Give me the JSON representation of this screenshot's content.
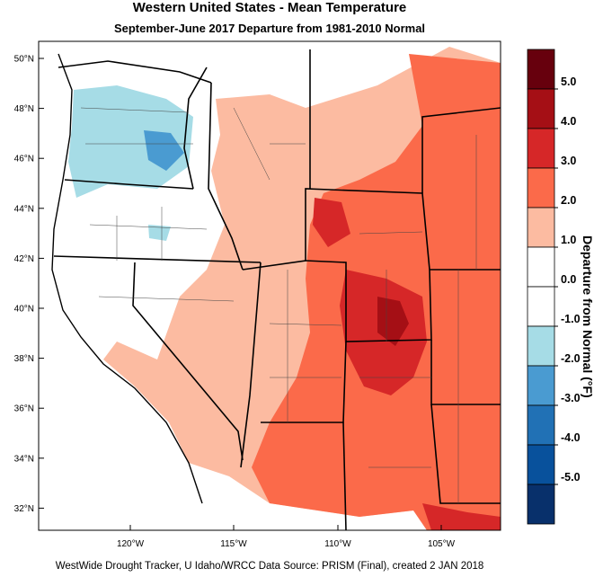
{
  "title": "Western United States - Mean Temperature",
  "subtitle": "September-June 2017  Departure from 1981-2010 Normal",
  "credit": "WestWide Drought Tracker, U Idaho/WRCC Data Source: PRISM (Final), created  2 JAN 2018",
  "colorbar": {
    "title": "Departure from Normal (°F)",
    "bins": [
      {
        "label": "5.0",
        "color": "#67000d"
      },
      {
        "label": "4.0",
        "color": "#a50f15"
      },
      {
        "label": "3.0",
        "color": "#d62728"
      },
      {
        "label": "2.0",
        "color": "#fb6a4a"
      },
      {
        "label": "1.0",
        "color": "#fcbba1"
      },
      {
        "label": "0.0",
        "color": "#ffffff"
      },
      {
        "label": "-1.0",
        "color": "#ffffff"
      },
      {
        "label": "-2.0",
        "color": "#a6dce6"
      },
      {
        "label": "-3.0",
        "color": "#4a9bd1"
      },
      {
        "label": "-4.0",
        "color": "#2171b5"
      },
      {
        "label": "-5.0",
        "color": "#08519c"
      },
      {
        "label": "",
        "color": "#08306b"
      }
    ]
  },
  "axes": {
    "lat_labels": [
      "50°N",
      "48°N",
      "46°N",
      "44°N",
      "42°N",
      "40°N",
      "38°N",
      "36°N",
      "34°N",
      "32°N"
    ],
    "lon_labels": [
      "120°W",
      "115°W",
      "110°W",
      "105°W"
    ]
  },
  "chart_data": {
    "type": "heatmap",
    "title": "Western United States - Mean Temperature",
    "subtitle": "September-June 2017  Departure from 1981-2010 Normal",
    "xlabel": "",
    "ylabel": "",
    "colorbar_label": "Departure from Normal (°F)",
    "x_ticks": [
      "120°W",
      "115°W",
      "110°W",
      "105°W"
    ],
    "y_ticks": [
      "50°N",
      "48°N",
      "46°N",
      "44°N",
      "42°N",
      "40°N",
      "38°N",
      "36°N",
      "34°N",
      "32°N"
    ],
    "lon_range": [
      -124.5,
      -101.0
    ],
    "lat_range": [
      31.0,
      50.5
    ]
  }
}
